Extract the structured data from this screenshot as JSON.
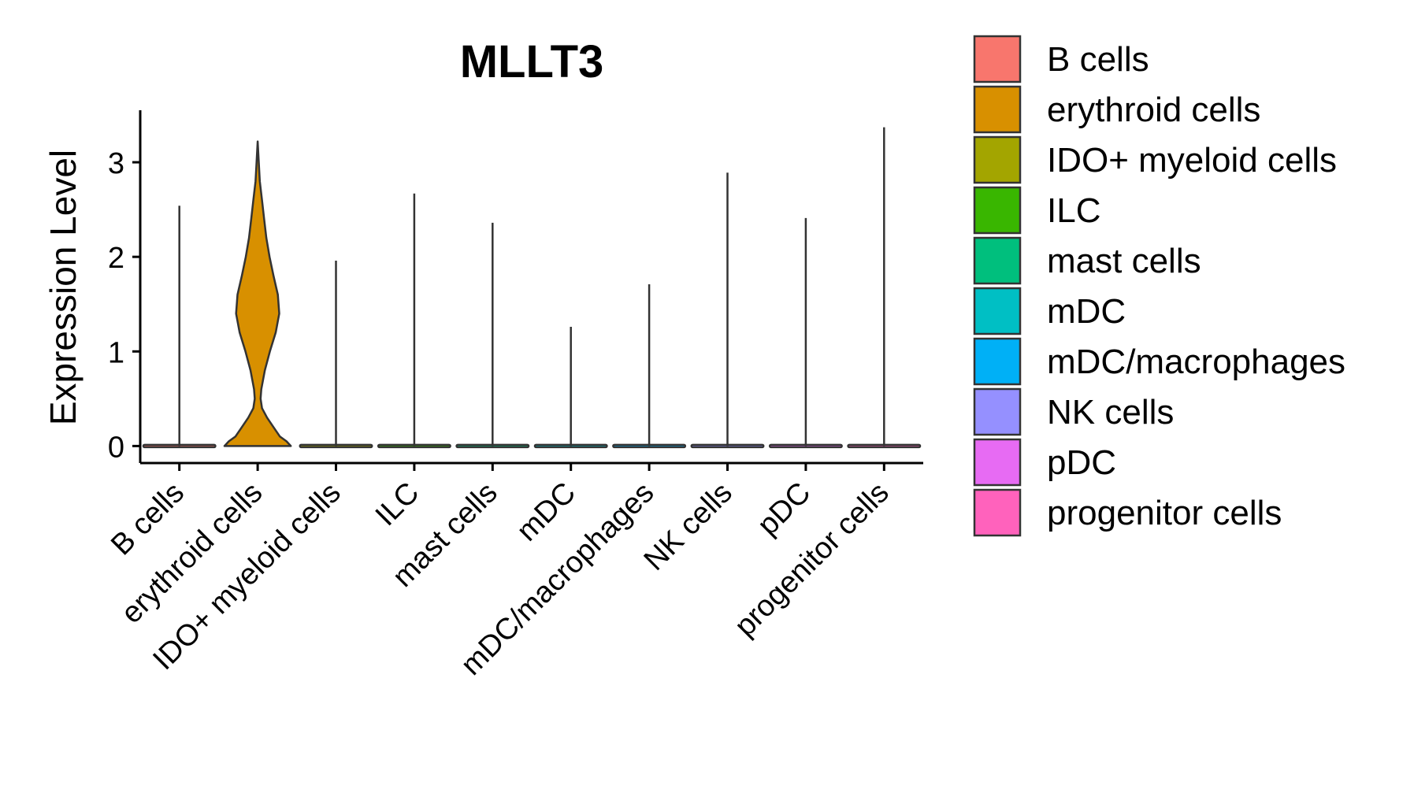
{
  "chart_data": {
    "type": "violin",
    "title": "MLLT3",
    "xlabel": "",
    "ylabel": "Expression Level",
    "ylim": [
      -0.18,
      3.55
    ],
    "yticks": [
      0,
      1,
      2,
      3
    ],
    "grid": false,
    "legend_position": "right",
    "categories": [
      "B cells",
      "erythroid cells",
      "IDO+ myeloid cells",
      "ILC",
      "mast cells",
      "mDC",
      "mDC/macrophages",
      "NK cells",
      "pDC",
      "progenitor cells"
    ],
    "colors": [
      "#F8766D",
      "#D89000",
      "#A3A500",
      "#39B600",
      "#00BF7D",
      "#00BFC4",
      "#00B0F6",
      "#9590FF",
      "#E76BF3",
      "#FF62BC"
    ],
    "max_values": [
      2.54,
      3.22,
      1.96,
      2.67,
      2.36,
      1.26,
      1.71,
      2.89,
      2.41,
      3.37
    ],
    "erythroid_density": [
      [
        0.0,
        0.92
      ],
      [
        0.05,
        0.8
      ],
      [
        0.1,
        0.62
      ],
      [
        0.2,
        0.44
      ],
      [
        0.3,
        0.26
      ],
      [
        0.4,
        0.12
      ],
      [
        0.5,
        0.08
      ],
      [
        0.6,
        0.1
      ],
      [
        0.8,
        0.2
      ],
      [
        1.0,
        0.34
      ],
      [
        1.2,
        0.5
      ],
      [
        1.4,
        0.6
      ],
      [
        1.6,
        0.56
      ],
      [
        1.8,
        0.44
      ],
      [
        2.0,
        0.33
      ],
      [
        2.2,
        0.24
      ],
      [
        2.4,
        0.18
      ],
      [
        2.6,
        0.12
      ],
      [
        2.8,
        0.06
      ],
      [
        3.0,
        0.03
      ],
      [
        3.22,
        0.0
      ]
    ]
  }
}
